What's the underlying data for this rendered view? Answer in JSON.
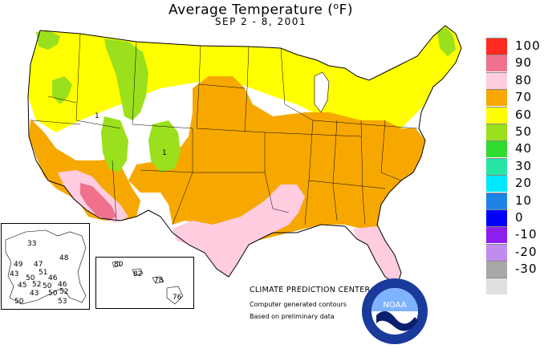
{
  "title": {
    "prefix": "Average Temperature (",
    "degree": "o",
    "suffix": "F)"
  },
  "subtitle": "SEP 2 - 8, 2001",
  "legend": {
    "items": [
      {
        "label": "100",
        "color": "#ff2a1f"
      },
      {
        "label": "90",
        "color": "#f0718d"
      },
      {
        "label": "80",
        "color": "#ffcce0"
      },
      {
        "label": "70",
        "color": "#f7a800"
      },
      {
        "label": "60",
        "color": "#ffff00"
      },
      {
        "label": "50",
        "color": "#9ae01c"
      },
      {
        "label": "40",
        "color": "#2fdc2f"
      },
      {
        "label": "30",
        "color": "#26e6a6"
      },
      {
        "label": "20",
        "color": "#00e8ff"
      },
      {
        "label": "10",
        "color": "#1f82e6"
      },
      {
        "label": "0",
        "color": "#0000ff"
      },
      {
        "label": "-10",
        "color": "#8c1ff0"
      },
      {
        "label": "-20",
        "color": "#c08cf0"
      },
      {
        "label": "-30",
        "color": "#a8a8a8"
      },
      {
        "label": "",
        "color": "#e0e0e0"
      }
    ]
  },
  "credits": {
    "center": "CLIMATE PREDICTION CENTER, NOAA",
    "line1": "Computer generated contours",
    "line2": "Based on preliminary data"
  },
  "alaska_values": [
    "33",
    "48",
    "49",
    "47",
    "51",
    "43",
    "50",
    "46",
    "45",
    "52",
    "50",
    "46",
    "43",
    "50",
    "52",
    "50",
    "53"
  ],
  "hawaii_values": [
    "80",
    "82",
    "78",
    "76"
  ],
  "map_values": [
    "1",
    "1"
  ],
  "logo_text": "NOAA"
}
